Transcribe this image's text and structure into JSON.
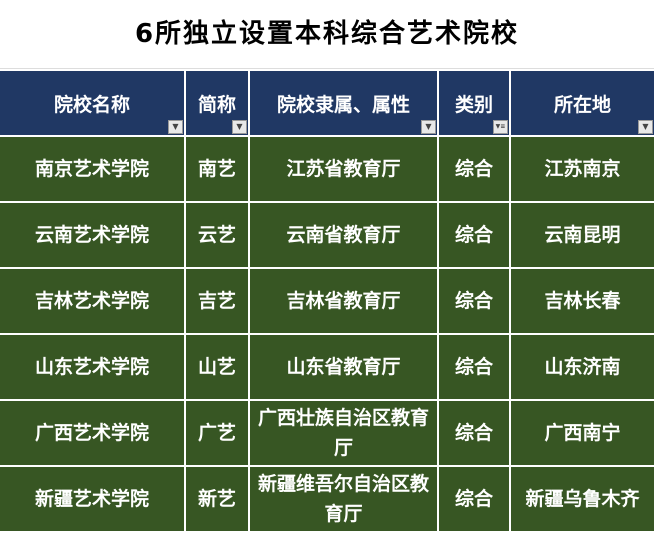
{
  "title": "6所独立设置本科综合艺术院校",
  "columns": [
    "院校名称",
    "简称",
    "院校隶属、属性",
    "类别",
    "所在地"
  ],
  "filter_icons": [
    "dropdown-icon",
    "dropdown-icon",
    "dropdown-icon",
    "filter-active-icon",
    "dropdown-icon"
  ],
  "rows": [
    [
      "南京艺术学院",
      "南艺",
      "江苏省教育厅",
      "综合",
      "江苏南京"
    ],
    [
      "云南艺术学院",
      "云艺",
      "云南省教育厅",
      "综合",
      "云南昆明"
    ],
    [
      "吉林艺术学院",
      "吉艺",
      "吉林省教育厅",
      "综合",
      "吉林长春"
    ],
    [
      "山东艺术学院",
      "山艺",
      "山东省教育厅",
      "综合",
      "山东济南"
    ],
    [
      "广西艺术学院",
      "广艺",
      "广西壮族自治区教育厅",
      "综合",
      "广西南宁"
    ],
    [
      "新疆艺术学院",
      "新艺",
      "新疆维吾尔自治区教育厅",
      "综合",
      "新疆乌鲁木齐"
    ]
  ],
  "colors": {
    "header": "#203864",
    "row": "#375623"
  }
}
